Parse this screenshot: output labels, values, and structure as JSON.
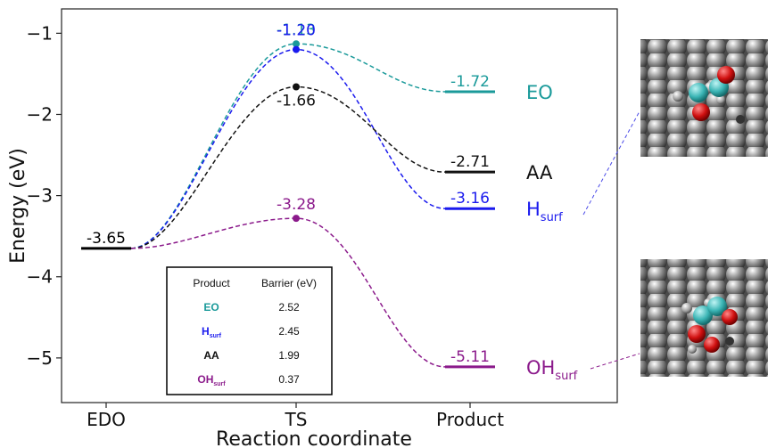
{
  "chart_data": {
    "type": "line",
    "xlabel": "Reaction coordinate",
    "ylabel": "Energy (eV)",
    "categories": [
      "EDO",
      "TS",
      "Product"
    ],
    "ylim": [
      -5.55,
      -0.7
    ],
    "y_ticks": [
      -1,
      -2,
      -3,
      -4,
      -5
    ],
    "y_tick_labels": [
      "−1",
      "−2",
      "−3",
      "−4",
      "−5"
    ],
    "grid": false,
    "start": {
      "value": -3.65,
      "label": "-3.65",
      "color": "#000000"
    },
    "series": [
      {
        "name": "EO",
        "sub": "",
        "ts": -1.13,
        "product": -1.72,
        "ts_label": "-1.13",
        "product_label": "-1.72",
        "color": "#1a9a9a"
      },
      {
        "name": "H",
        "sub": "surf",
        "ts": -1.2,
        "product": -3.16,
        "ts_label": "-1.20",
        "product_label": "-3.16",
        "color": "#1a1aee"
      },
      {
        "name": "AA",
        "sub": "",
        "ts": -1.66,
        "product": -2.71,
        "ts_label": "-1.66",
        "product_label": "-2.71",
        "color": "#111111"
      },
      {
        "name": "OH",
        "sub": "surf",
        "ts": -3.28,
        "product": -5.11,
        "ts_label": "-3.28",
        "product_label": "-5.11",
        "color": "#8b1a8b"
      }
    ],
    "table": {
      "headers": [
        "Product",
        "Barrier (eV)"
      ],
      "rows": [
        {
          "product": "EO",
          "sub": "",
          "barrier": "2.52",
          "color": "#1a9a9a"
        },
        {
          "product": "H",
          "sub": "surf",
          "barrier": "2.45",
          "color": "#1a1aee"
        },
        {
          "product": "AA",
          "sub": "",
          "barrier": "1.99",
          "color": "#111111"
        },
        {
          "product": "OH",
          "sub": "surf",
          "barrier": "0.37",
          "color": "#8b1a8b"
        }
      ]
    }
  }
}
